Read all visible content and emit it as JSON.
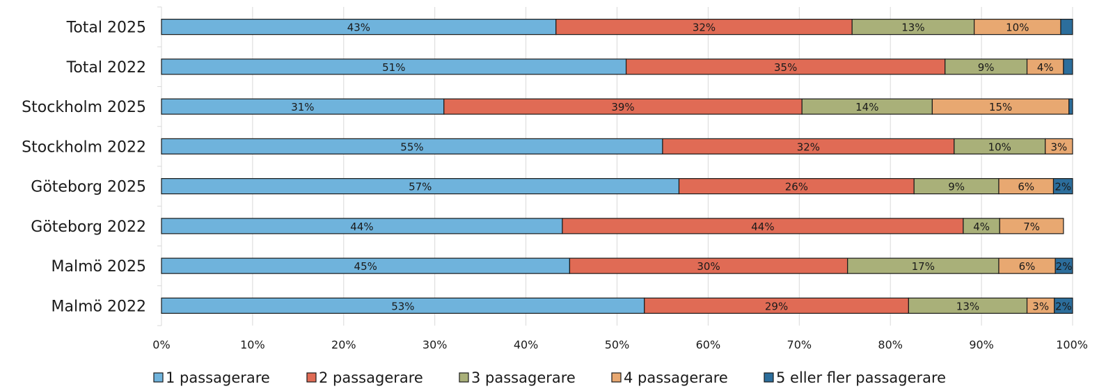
{
  "chart_data": {
    "type": "bar",
    "orientation": "horizontal",
    "stacked": true,
    "percent": true,
    "categories": [
      "Total 2025",
      "Total 2022",
      "Stockholm 2025",
      "Stockholm 2022",
      "Göteborg 2025",
      "Göteborg 2022",
      "Malmö 2025",
      "Malmö 2022"
    ],
    "series": [
      {
        "name": "1 passagerare",
        "color": "#6fb3dc",
        "values": [
          43.3,
          51.0,
          31.0,
          55.0,
          56.8,
          44.0,
          44.8,
          53.0
        ],
        "labels": [
          "43%",
          "51%",
          "31%",
          "55%",
          "57%",
          "44%",
          "45%",
          "53%"
        ]
      },
      {
        "name": "2 passagerare",
        "color": "#e06b55",
        "values": [
          32.5,
          35.0,
          39.3,
          32.0,
          25.8,
          44.0,
          30.5,
          29.0
        ],
        "labels": [
          "32%",
          "35%",
          "39%",
          "32%",
          "26%",
          "44%",
          "30%",
          "29%"
        ]
      },
      {
        "name": "3 passagerare",
        "color": "#a9b079",
        "values": [
          13.4,
          9.0,
          14.3,
          10.0,
          9.3,
          4.0,
          16.6,
          13.0
        ],
        "labels": [
          "13%",
          "9%",
          "14%",
          "10%",
          "9%",
          "4%",
          "17%",
          "13%"
        ]
      },
      {
        "name": "4 passagerare",
        "color": "#e8a871",
        "values": [
          9.5,
          4.0,
          15.0,
          3.0,
          6.0,
          7.0,
          6.2,
          3.0
        ],
        "labels": [
          "10%",
          "4%",
          "15%",
          "3%",
          "6%",
          "7%",
          "6%",
          "3%"
        ]
      },
      {
        "name": "5 eller fler passagerare",
        "color": "#2c6e9c",
        "values": [
          1.3,
          1.0,
          0.4,
          0,
          2.1,
          0,
          1.9,
          2.0
        ],
        "labels": [
          "",
          "",
          "",
          "",
          "2%",
          "",
          "2%",
          "2%"
        ]
      }
    ],
    "xlim": [
      0,
      100
    ],
    "xticks": [
      "0%",
      "10%",
      "20%",
      "30%",
      "40%",
      "50%",
      "60%",
      "70%",
      "80%",
      "90%",
      "100%"
    ],
    "grid": true,
    "legend_position": "bottom"
  }
}
